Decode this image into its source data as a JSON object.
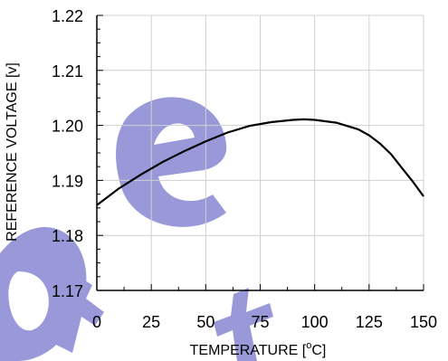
{
  "colors": {
    "watermark": "#8080d0",
    "grid": "#d0d0d0",
    "axis": "#000000",
    "series_line": "#000000"
  },
  "watermark": {
    "text": "Obsolete"
  },
  "chart_data": {
    "type": "line",
    "title": "",
    "xlabel": "TEMPERATURE [",
    "xlabel_sup": "o",
    "xlabel_suffix": "C]",
    "ylabel": "REFERENCE VOLTAGE [v]",
    "xlim": [
      0,
      150
    ],
    "ylim": [
      1.17,
      1.22
    ],
    "x_ticks": [
      0,
      25,
      50,
      75,
      100,
      125,
      150
    ],
    "x_tick_labels": [
      "0",
      "25",
      "50",
      "75",
      "100",
      "125",
      "150"
    ],
    "y_ticks": [
      1.17,
      1.18,
      1.19,
      1.2,
      1.21,
      1.22
    ],
    "y_tick_labels": [
      "1.17",
      "1.18",
      "1.19",
      "1.20",
      "1.21",
      "1.22"
    ],
    "grid": true,
    "series": [
      {
        "x": [
          0,
          10,
          20,
          30,
          40,
          50,
          60,
          70,
          80,
          90,
          95,
          100,
          110,
          120,
          125,
          130,
          135,
          140,
          145,
          150
        ],
        "y": [
          1.1855,
          1.1885,
          1.191,
          1.1933,
          1.1953,
          1.1971,
          1.1987,
          1.1999,
          1.2006,
          1.201,
          1.2011,
          1.201,
          1.2005,
          1.1993,
          1.1982,
          1.1967,
          1.1948,
          1.1923,
          1.1898,
          1.1871
        ]
      }
    ]
  }
}
